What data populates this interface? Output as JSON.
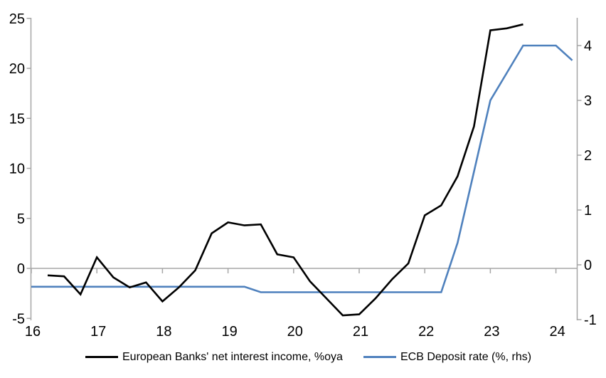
{
  "colors": {
    "nii_line": "#000000",
    "ecb_line": "#4f81bd",
    "axis": "#a6a6a6",
    "text": "#000000"
  },
  "chart_data": {
    "type": "line",
    "grid": false,
    "legend_position": "bottom",
    "x_axis": {
      "ticks": [
        16,
        17,
        18,
        19,
        20,
        21,
        22,
        23,
        24
      ],
      "range": [
        16,
        24.33
      ]
    },
    "left_axis": {
      "ticks": [
        25,
        20,
        15,
        10,
        5,
        0,
        -5
      ],
      "range": [
        -5,
        25
      ]
    },
    "right_axis": {
      "ticks": [
        4,
        3,
        2,
        1,
        0,
        -1
      ],
      "range": [
        -1,
        4.5
      ]
    },
    "series": [
      {
        "id": "nii",
        "name": "European Banks' net interest income, %oya",
        "axis": "left",
        "color": "#000000",
        "x": [
          16.25,
          16.5,
          16.75,
          17,
          17.25,
          17.5,
          17.75,
          18,
          18.25,
          18.5,
          18.75,
          19,
          19.25,
          19.5,
          19.75,
          20,
          20.25,
          20.5,
          20.75,
          21,
          21.25,
          21.5,
          21.75,
          22,
          22.25,
          22.5,
          22.75,
          23,
          23.25,
          23.5
        ],
        "values": [
          -0.7,
          -0.8,
          -2.6,
          1.1,
          -0.9,
          -1.9,
          -1.4,
          -3.3,
          -1.9,
          -0.2,
          3.5,
          4.6,
          4.3,
          4.4,
          1.4,
          1.1,
          -1.3,
          -3.0,
          -4.7,
          -4.6,
          -3.0,
          -1.1,
          0.5,
          5.3,
          6.3,
          9.2,
          14.2,
          23.8,
          24.0,
          24.4
        ]
      },
      {
        "id": "ecb",
        "name": "ECB Deposit rate (%, rhs)",
        "axis": "right",
        "color": "#4f81bd",
        "x": [
          16,
          16.25,
          16.5,
          16.75,
          17,
          17.25,
          17.5,
          17.75,
          18,
          18.25,
          18.5,
          18.75,
          19,
          19.25,
          19.5,
          19.75,
          20,
          20.25,
          20.5,
          20.75,
          21,
          21.25,
          21.5,
          21.75,
          22,
          22.25,
          22.5,
          22.75,
          23,
          23.25,
          23.5,
          23.75,
          24,
          24.25
        ],
        "values": [
          -0.4,
          -0.4,
          -0.4,
          -0.4,
          -0.4,
          -0.4,
          -0.4,
          -0.4,
          -0.4,
          -0.4,
          -0.4,
          -0.4,
          -0.4,
          -0.4,
          -0.5,
          -0.5,
          -0.5,
          -0.5,
          -0.5,
          -0.5,
          -0.5,
          -0.5,
          -0.5,
          -0.5,
          -0.5,
          -0.5,
          0.4,
          1.7,
          3.0,
          3.5,
          4.0,
          4.0,
          4.0,
          3.73
        ]
      }
    ]
  }
}
